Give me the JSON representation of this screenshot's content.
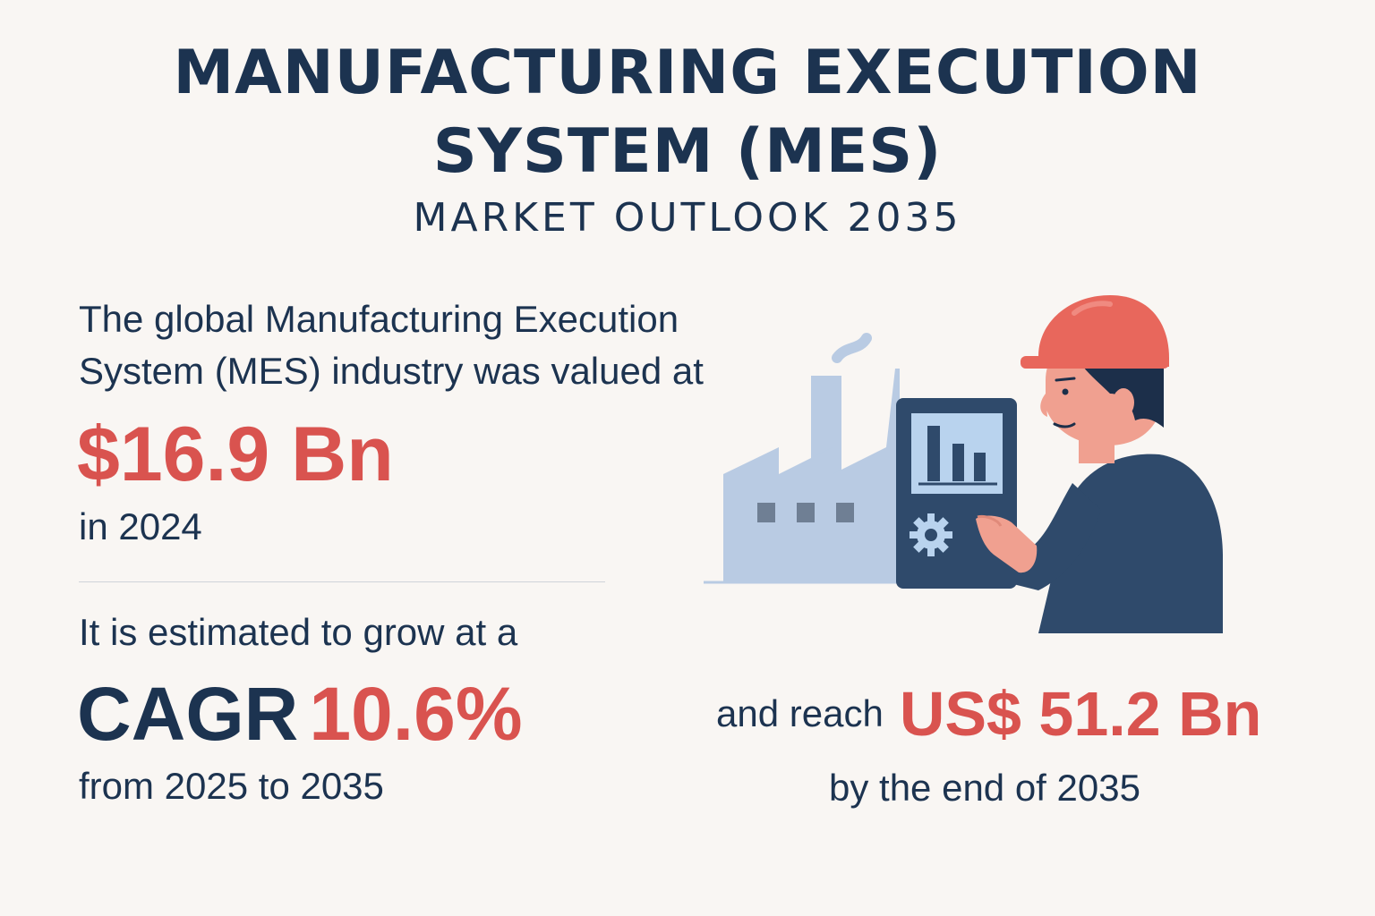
{
  "header": {
    "title_line1": "MANUFACTURING EXECUTION",
    "title_line2": "SYSTEM (MES)",
    "subtitle": "MARKET OUTLOOK 2035"
  },
  "intro": {
    "line1": "The global Manufacturing Execution",
    "line2": "System (MES) industry was valued at",
    "value": "$16.9 Bn",
    "year_text": "in 2024"
  },
  "growth": {
    "lead": "It is estimated to grow at a",
    "cagr_label": "CAGR",
    "cagr_value": "10.6%",
    "period": "from 2025 to 2035"
  },
  "forecast": {
    "lead": "and reach",
    "value": "US$ 51.2 Bn",
    "period": "by the end of 2035"
  },
  "illustration": {
    "icons": [
      "factory-icon",
      "tablet-icon",
      "bar-chart-icon",
      "gear-icon",
      "worker-icon",
      "hard-hat-icon"
    ]
  },
  "colors": {
    "navy": "#1c3350",
    "accent_red": "#d9534f",
    "background": "#f9f6f3",
    "factory_blue": "#b9cbe3"
  }
}
